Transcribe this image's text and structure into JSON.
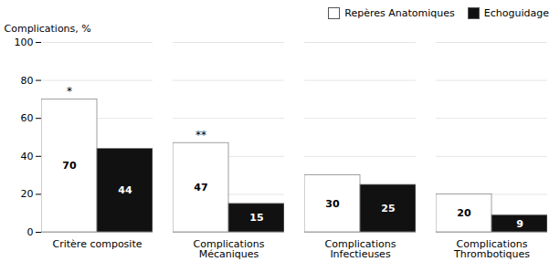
{
  "chart_data": {
    "type": "bar",
    "categories": [
      "Critère composite",
      "Complications\nMécaniques",
      "Complications\nInfectieuses",
      "Complications\nThrombotiques"
    ],
    "series": [
      {
        "name": "Repères Anatomiques",
        "color": "#ffffff",
        "values": [
          70,
          47,
          30,
          20
        ]
      },
      {
        "name": "Echoguidage",
        "color": "#111111",
        "values": [
          44,
          15,
          25,
          9
        ]
      }
    ],
    "ylabel": "Complications, %",
    "ylim": [
      0,
      100
    ],
    "yticks": [
      0,
      20,
      40,
      60,
      80,
      100
    ],
    "grid": true,
    "legend": "upper right",
    "data_labels": true,
    "annotations": [
      {
        "text": "*",
        "series": "Repères Anatomiques",
        "category": "Critère composite"
      },
      {
        "text": "**",
        "series": "Repères Anatomiques",
        "category": "Complications\nMécaniques"
      }
    ]
  }
}
